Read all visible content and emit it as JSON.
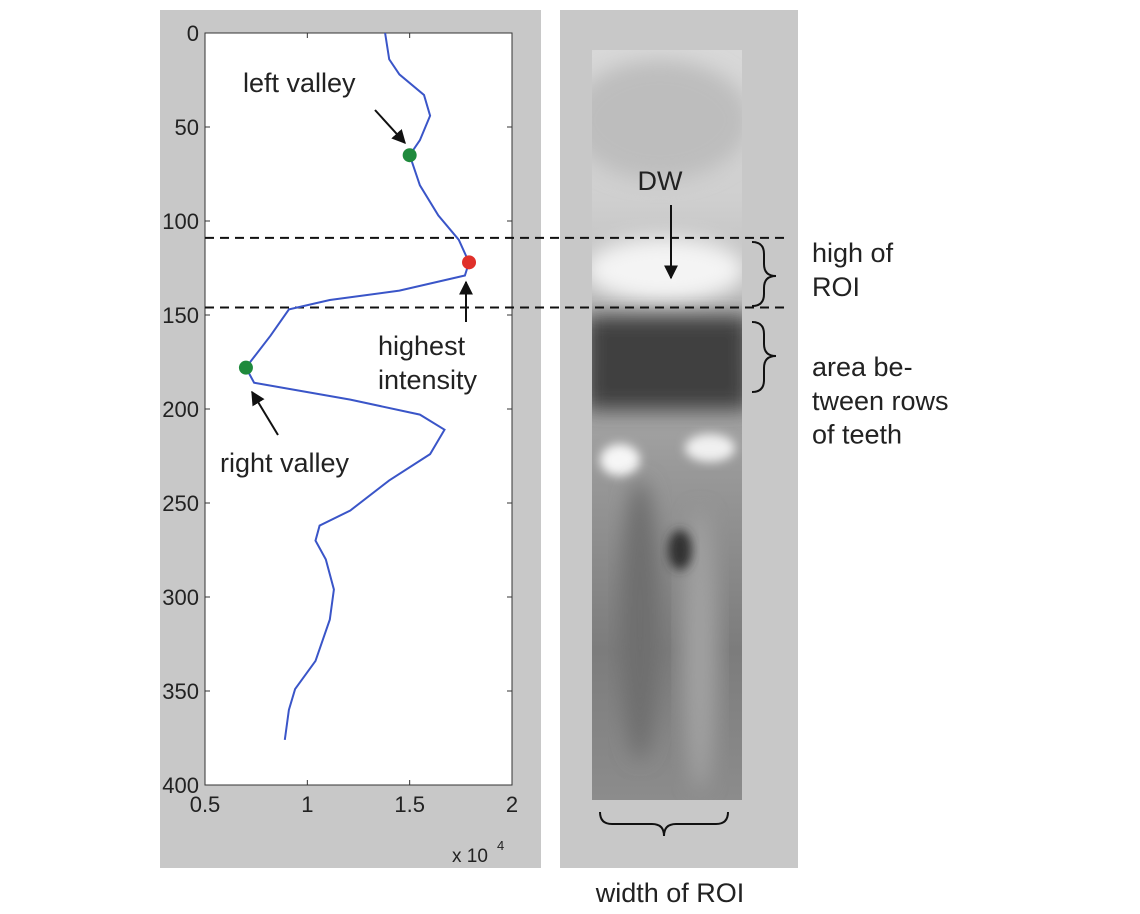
{
  "chart_data": {
    "type": "line",
    "color": "#3a55c8",
    "x": [
      1.38,
      1.4,
      1.45,
      1.57,
      1.6,
      1.55,
      1.5,
      1.55,
      1.64,
      1.74,
      1.79,
      1.77,
      1.45,
      1.11,
      0.91,
      0.82,
      0.7,
      0.74,
      1.21,
      1.55,
      1.67,
      1.6,
      1.4,
      1.21,
      1.06,
      1.04,
      1.09,
      1.13,
      1.11,
      1.04,
      0.94,
      0.91,
      0.89
    ],
    "y": [
      0,
      14,
      22,
      33,
      44,
      57,
      65,
      81,
      97,
      110,
      122,
      129,
      137,
      142,
      147,
      161,
      178,
      186,
      195,
      203,
      211,
      224,
      238,
      254,
      262,
      270,
      280,
      296,
      312,
      334,
      349,
      360,
      376
    ],
    "xlim": [
      0.5,
      2
    ],
    "xticks": [
      0.5,
      1,
      1.5,
      2
    ],
    "ylim": [
      0,
      400
    ],
    "yticks": [
      0,
      50,
      100,
      150,
      200,
      250,
      300,
      350,
      400
    ],
    "y_reversed": true,
    "x_multiplier": {
      "base": "x 10",
      "exponent": "4"
    },
    "markers": [
      {
        "label": [
          "left valley"
        ],
        "x": 1.5,
        "y": 65,
        "color": "#1f8a3c"
      },
      {
        "label": [
          "highest",
          "intensity"
        ],
        "x": 1.79,
        "y": 122,
        "color": "#e0302a"
      },
      {
        "label": [
          "right valley"
        ],
        "x": 0.7,
        "y": 178,
        "color": "#1f8a3c"
      }
    ],
    "roi_rows": [
      109,
      146
    ]
  },
  "image_panel": {
    "dw_label": "DW",
    "roi_height_label": [
      "high of",
      "ROI"
    ],
    "gap_label": [
      "area be-",
      "tween rows",
      "of teeth"
    ],
    "roi_width_label": "width of ROI"
  }
}
